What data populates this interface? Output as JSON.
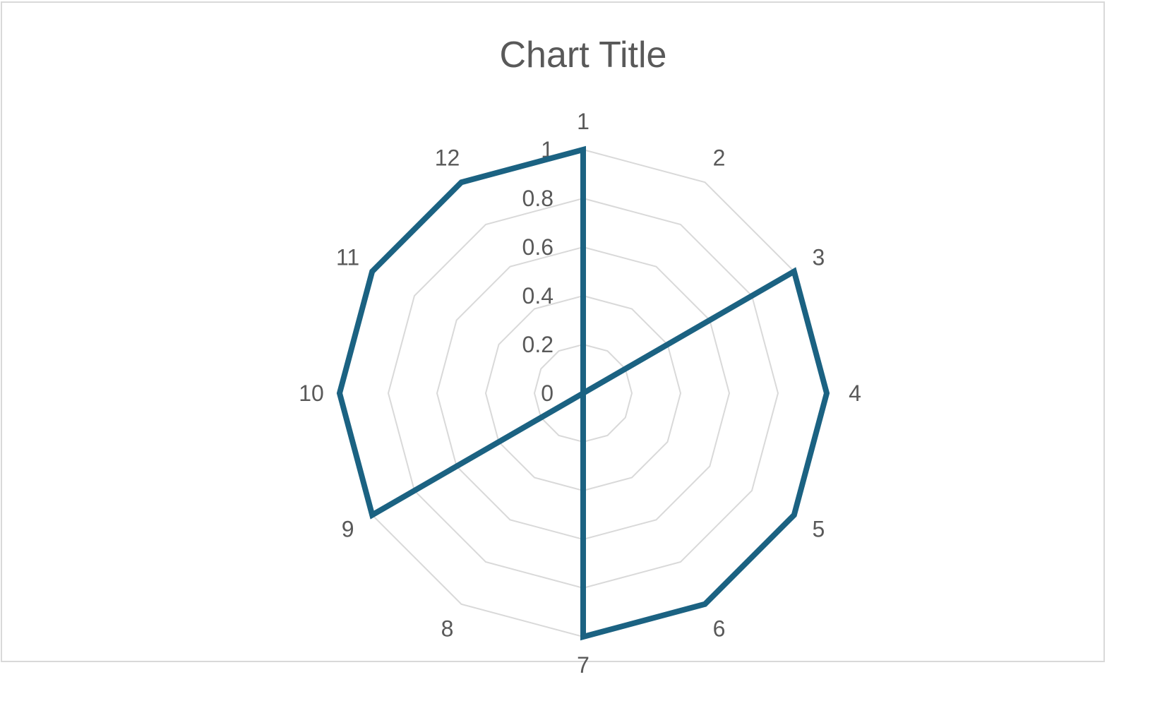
{
  "chart_data": {
    "type": "radar",
    "title": "Chart Title",
    "categories": [
      "1",
      "2",
      "3",
      "4",
      "5",
      "6",
      "7",
      "8",
      "9",
      "10",
      "11",
      "12"
    ],
    "series": [
      {
        "values": [
          1.0,
          0.0,
          1.0,
          1.0,
          1.0,
          1.0,
          1.0,
          0.0,
          1.0,
          1.0,
          1.0,
          1.0
        ]
      }
    ],
    "rlim": [
      0,
      1
    ],
    "r_ticks": [
      "0",
      "0.2",
      "0.4",
      "0.6",
      "0.8",
      "1"
    ],
    "legend": "none",
    "colors": {
      "series": "#1b6282",
      "grid": "#d9d9d9",
      "text": "#595959"
    }
  }
}
